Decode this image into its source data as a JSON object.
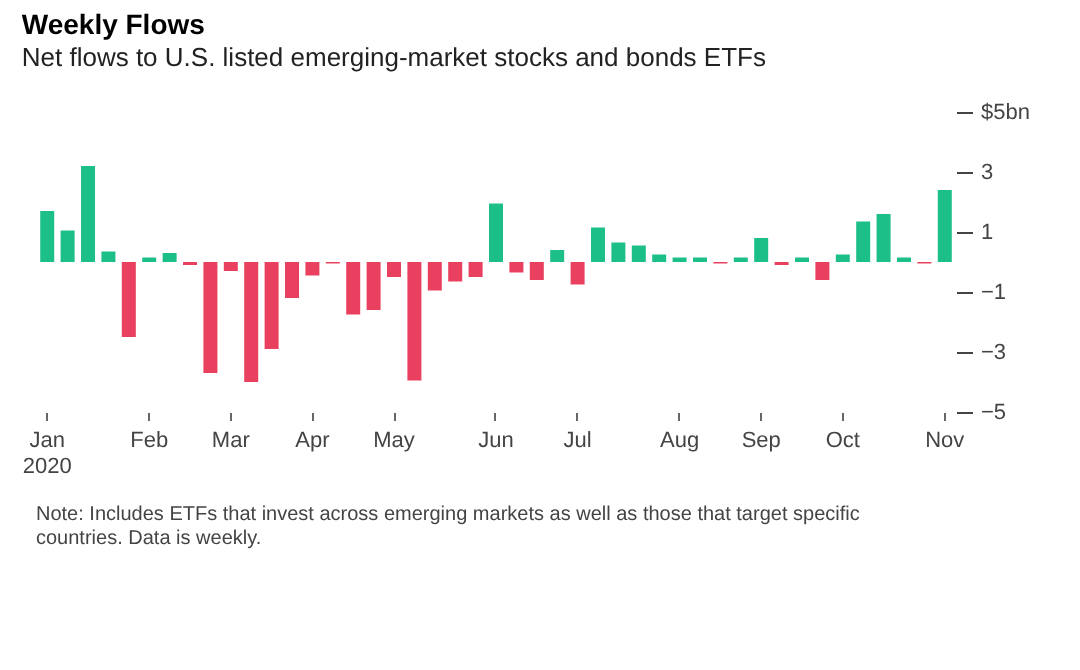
{
  "chart_data": {
    "type": "bar",
    "title": "Weekly Flows",
    "subtitle": "Net flows to U.S. listed emerging-market stocks and bonds ETFs",
    "categories": [
      "Jan\n2020",
      null,
      null,
      null,
      null,
      "Feb",
      null,
      null,
      null,
      "Mar",
      null,
      null,
      null,
      "Apr",
      null,
      null,
      null,
      "May",
      null,
      null,
      null,
      null,
      "Jun",
      null,
      null,
      null,
      "Jul",
      null,
      null,
      null,
      null,
      "Aug",
      null,
      null,
      null,
      "Sep",
      null,
      null,
      null,
      "Oct",
      null,
      null,
      null,
      null,
      "Nov"
    ],
    "values": [
      1.7,
      1.05,
      3.2,
      0.35,
      -2.5,
      0.15,
      0.3,
      -0.1,
      -3.7,
      -0.3,
      -4.0,
      -2.9,
      -1.2,
      -0.45,
      -0.05,
      -1.75,
      -1.6,
      -0.5,
      -3.95,
      -0.95,
      -0.65,
      -0.5,
      1.95,
      -0.35,
      -0.6,
      0.4,
      -0.75,
      1.15,
      0.65,
      0.55,
      0.25,
      0.15,
      0.15,
      -0.05,
      0.15,
      0.8,
      -0.1,
      0.15,
      -0.6,
      0.25,
      1.35,
      1.6,
      0.15,
      -0.05,
      2.4
    ],
    "colors": [
      "#1dbf88",
      "#1dbf88",
      "#1dbf88",
      "#1dbf88",
      "#e8405e",
      "#1dbf88",
      "#1dbf88",
      "#e8405e",
      "#e8405e",
      "#e8405e",
      "#e8405e",
      "#e8405e",
      "#e8405e",
      "#e8405e",
      "#e8405e",
      "#e8405e",
      "#e8405e",
      "#e8405e",
      "#e8405e",
      "#e8405e",
      "#e8405e",
      "#e8405e",
      "#1dbf88",
      "#e8405e",
      "#e8405e",
      "#1dbf88",
      "#e8405e",
      "#1dbf88",
      "#1dbf88",
      "#1dbf88",
      "#1dbf88",
      "#1dbf88",
      "#1dbf88",
      "#e8405e",
      "#1dbf88",
      "#1dbf88",
      "#e8405e",
      "#1dbf88",
      "#e8405e",
      "#1dbf88",
      "#1dbf88",
      "#1dbf88",
      "#1dbf88",
      "#e8405e",
      "#1dbf88"
    ],
    "ylim": [
      -5,
      5
    ],
    "yticks": [
      {
        "value": 5,
        "label": "$5bn"
      },
      3,
      1,
      -1,
      -3,
      -5
    ],
    "grid": false,
    "annotations": [
      "Note: Includes ETFs that invest across emerging markets as well as those that target specific countries. Data is weekly."
    ]
  }
}
